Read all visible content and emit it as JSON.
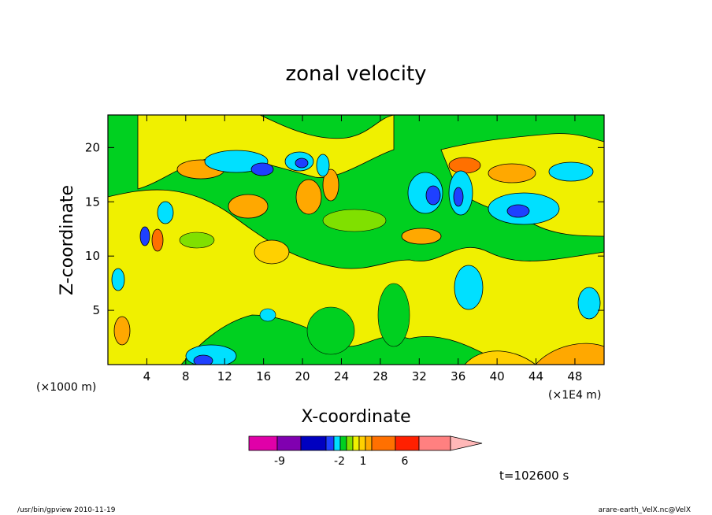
{
  "chart_data": {
    "type": "heatmap",
    "title": "zonal velocity",
    "xlabel": "X-coordinate",
    "ylabel": "Z-coordinate",
    "x_unit_left": "(×1000 m)",
    "x_unit_right": "(×1E4 m)",
    "xlim": [
      0,
      51
    ],
    "ylim": [
      0,
      23
    ],
    "x_ticks": [
      4,
      8,
      12,
      16,
      20,
      24,
      28,
      32,
      36,
      40,
      44,
      48
    ],
    "x_tick_labels": [
      "4",
      "8",
      "12",
      "16",
      "20",
      "24",
      "28",
      "32",
      "36",
      "40",
      "44",
      "48"
    ],
    "y_ticks": [
      5,
      10,
      15,
      20
    ],
    "y_tick_labels": [
      "5",
      "10",
      "15",
      "20"
    ],
    "colorbar": {
      "colors": [
        "#e000a8",
        "#8000b0",
        "#0000c0",
        "#1e40ff",
        "#00e0ff",
        "#00d020",
        "#80e000",
        "#f0f000",
        "#ffd000",
        "#ffa800",
        "#ff7000",
        "#ff2000",
        "#ff8080",
        "#ffb8b8"
      ],
      "labels": [
        "-9",
        "-2",
        "1",
        "6"
      ]
    },
    "time_label": "t=102600 s",
    "background_color": "#00d020",
    "field_regions": [
      {
        "level": "yellow",
        "color": "#f0f000",
        "note": "large lower-center region"
      },
      {
        "level": "orange",
        "color": "#ffa800"
      },
      {
        "level": "cyan",
        "color": "#00e0ff"
      },
      {
        "level": "blue",
        "color": "#1e40ff"
      }
    ]
  },
  "footer": {
    "left": "/usr/bin/gpview   2010-11-19",
    "right": "arare-earth_VelX.nc@VelX"
  },
  "colors": {
    "green": "#00d020",
    "yellow": "#f0f000",
    "light_yellow": "#ffd000",
    "orange": "#ffa800",
    "deep_orange": "#ff7000",
    "cyan": "#00e0ff",
    "blue": "#1e40ff",
    "dark_blue": "#0000c0",
    "red": "#ff2000"
  }
}
